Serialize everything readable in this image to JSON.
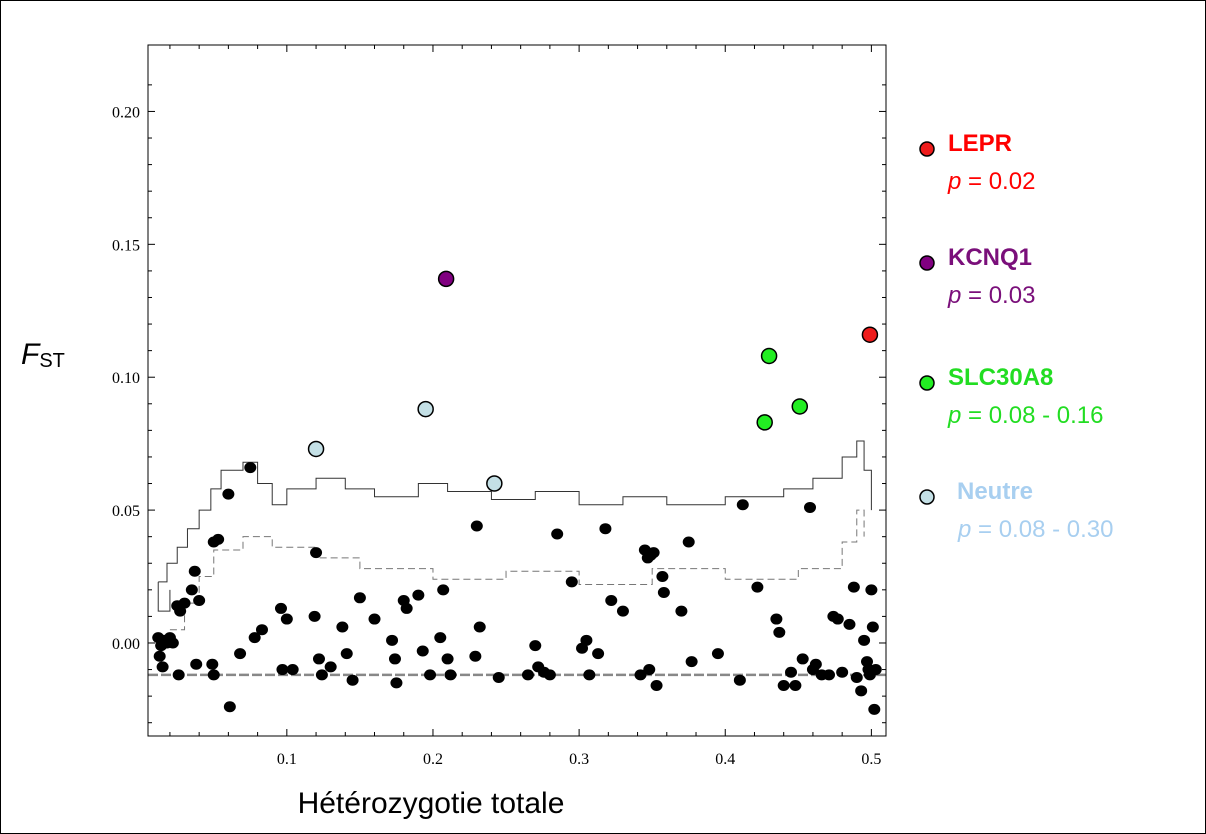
{
  "chart_data": {
    "type": "scatter",
    "title": "",
    "xlabel": "Hétérozygotie totale",
    "ylabel_main": "F",
    "ylabel_sub": "ST",
    "xlim": [
      0.005,
      0.51
    ],
    "ylim": [
      -0.035,
      0.225
    ],
    "x_ticks": [
      0.1,
      0.2,
      0.3,
      0.4,
      0.5
    ],
    "x_tick_labels": [
      "0.1",
      "0.2",
      "0.3",
      "0.4",
      "0.5"
    ],
    "y_ticks": [
      0.0,
      0.05,
      0.1,
      0.15,
      0.2
    ],
    "y_tick_labels": [
      "0.00",
      "0.05",
      "0.10",
      "0.15",
      "0.20"
    ],
    "grid": false,
    "legend_position": "right",
    "series": [
      {
        "name": "LEPR",
        "p_label": "p",
        "p_value": " = 0.02",
        "color": "#ee1c1c",
        "text_color": "#ff0000",
        "points": [
          [
            0.499,
            0.116
          ]
        ]
      },
      {
        "name": "KCNQ1",
        "p_label": "p",
        "p_value": " = 0.03",
        "color": "#800080",
        "text_color": "#7a0f7a",
        "points": [
          [
            0.209,
            0.137
          ]
        ]
      },
      {
        "name": "SLC30A8",
        "p_label": "p",
        "p_value": " = 0.08 - 0.16",
        "color": "#22ee22",
        "text_color": "#22dd22",
        "points": [
          [
            0.43,
            0.108
          ],
          [
            0.451,
            0.089
          ],
          [
            0.427,
            0.083
          ]
        ]
      },
      {
        "name": "Neutre",
        "p_label": "p",
        "p_value": " = 0.08 - 0.30",
        "color": "#c4e0e6",
        "text_color": "#a8cff0",
        "points": [
          [
            0.195,
            0.088
          ],
          [
            0.12,
            0.073
          ],
          [
            0.242,
            0.06
          ]
        ]
      }
    ],
    "background_points": [
      [
        0.012,
        0.002
      ],
      [
        0.014,
        -0.001
      ],
      [
        0.016,
        0.001
      ],
      [
        0.013,
        -0.005
      ],
      [
        0.018,
        0.0
      ],
      [
        0.02,
        0.002
      ],
      [
        0.022,
        0.0
      ],
      [
        0.015,
        -0.009
      ],
      [
        0.025,
        0.014
      ],
      [
        0.027,
        0.012
      ],
      [
        0.03,
        0.015
      ],
      [
        0.026,
        -0.012
      ],
      [
        0.035,
        0.02
      ],
      [
        0.037,
        0.027
      ],
      [
        0.04,
        0.016
      ],
      [
        0.038,
        -0.008
      ],
      [
        0.05,
        0.038
      ],
      [
        0.053,
        0.039
      ],
      [
        0.049,
        -0.008
      ],
      [
        0.05,
        -0.012
      ],
      [
        0.06,
        0.056
      ],
      [
        0.061,
        -0.024
      ],
      [
        0.068,
        -0.004
      ],
      [
        0.075,
        0.066
      ],
      [
        0.078,
        0.002
      ],
      [
        0.083,
        0.005
      ],
      [
        0.096,
        0.013
      ],
      [
        0.1,
        0.009
      ],
      [
        0.097,
        -0.01
      ],
      [
        0.104,
        -0.01
      ],
      [
        0.12,
        0.034
      ],
      [
        0.119,
        0.01
      ],
      [
        0.122,
        -0.006
      ],
      [
        0.124,
        -0.012
      ],
      [
        0.13,
        -0.009
      ],
      [
        0.138,
        0.006
      ],
      [
        0.141,
        -0.004
      ],
      [
        0.145,
        -0.014
      ],
      [
        0.15,
        0.017
      ],
      [
        0.16,
        0.009
      ],
      [
        0.172,
        0.001
      ],
      [
        0.174,
        -0.006
      ],
      [
        0.175,
        -0.015
      ],
      [
        0.18,
        0.016
      ],
      [
        0.182,
        0.013
      ],
      [
        0.19,
        0.018
      ],
      [
        0.193,
        -0.003
      ],
      [
        0.198,
        -0.012
      ],
      [
        0.205,
        0.002
      ],
      [
        0.207,
        0.02
      ],
      [
        0.21,
        -0.006
      ],
      [
        0.212,
        -0.012
      ],
      [
        0.23,
        0.044
      ],
      [
        0.232,
        0.006
      ],
      [
        0.229,
        -0.005
      ],
      [
        0.245,
        -0.013
      ],
      [
        0.265,
        -0.012
      ],
      [
        0.27,
        -0.001
      ],
      [
        0.272,
        -0.009
      ],
      [
        0.276,
        -0.011
      ],
      [
        0.28,
        -0.012
      ],
      [
        0.285,
        0.041
      ],
      [
        0.295,
        0.023
      ],
      [
        0.302,
        -0.002
      ],
      [
        0.305,
        0.001
      ],
      [
        0.307,
        -0.012
      ],
      [
        0.313,
        -0.004
      ],
      [
        0.318,
        0.043
      ],
      [
        0.322,
        0.016
      ],
      [
        0.33,
        0.012
      ],
      [
        0.342,
        -0.012
      ],
      [
        0.345,
        0.035
      ],
      [
        0.347,
        0.032
      ],
      [
        0.349,
        0.033
      ],
      [
        0.351,
        0.034
      ],
      [
        0.348,
        -0.01
      ],
      [
        0.353,
        -0.016
      ],
      [
        0.357,
        0.025
      ],
      [
        0.358,
        0.019
      ],
      [
        0.37,
        0.012
      ],
      [
        0.375,
        0.038
      ],
      [
        0.377,
        -0.007
      ],
      [
        0.395,
        -0.004
      ],
      [
        0.41,
        -0.014
      ],
      [
        0.412,
        0.052
      ],
      [
        0.422,
        0.021
      ],
      [
        0.435,
        0.009
      ],
      [
        0.437,
        0.004
      ],
      [
        0.44,
        -0.016
      ],
      [
        0.445,
        -0.011
      ],
      [
        0.448,
        -0.016
      ],
      [
        0.453,
        -0.006
      ],
      [
        0.458,
        0.051
      ],
      [
        0.46,
        -0.01
      ],
      [
        0.462,
        -0.008
      ],
      [
        0.466,
        -0.012
      ],
      [
        0.471,
        -0.012
      ],
      [
        0.474,
        0.01
      ],
      [
        0.477,
        0.009
      ],
      [
        0.48,
        -0.011
      ],
      [
        0.485,
        0.007
      ],
      [
        0.488,
        0.021
      ],
      [
        0.49,
        -0.013
      ],
      [
        0.493,
        -0.018
      ],
      [
        0.495,
        0.001
      ],
      [
        0.497,
        -0.007
      ],
      [
        0.498,
        -0.01
      ],
      [
        0.5,
        0.02
      ],
      [
        0.501,
        0.006
      ],
      [
        0.503,
        -0.01
      ],
      [
        0.502,
        -0.025
      ],
      [
        0.499,
        -0.012
      ]
    ]
  }
}
